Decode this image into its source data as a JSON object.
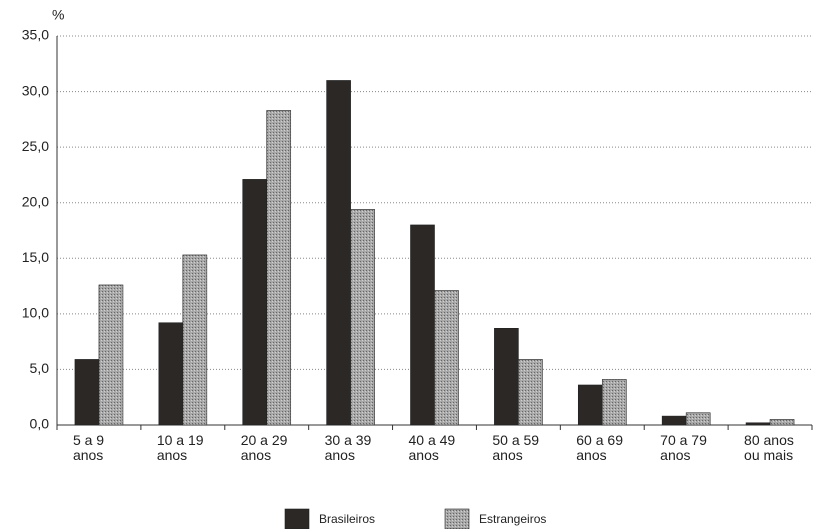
{
  "chart_data": {
    "type": "bar",
    "y_unit_label": "%",
    "categories": [
      "5 a 9\nanos",
      "10 a 19\nanos",
      "20 a 29\nanos",
      "30 a 39\nanos",
      "40 a 49\nanos",
      "50 a 59\nanos",
      "60 a 69\nanos",
      "70 a 79\nanos",
      "80 anos\nou mais"
    ],
    "series": [
      {
        "name": "Brasileiros",
        "color": "#2b2826",
        "values": [
          5.9,
          9.2,
          22.1,
          31.0,
          18.0,
          8.7,
          3.6,
          0.8,
          0.2
        ]
      },
      {
        "name": "Estrangeiros",
        "color": "#9a9a9a",
        "values": [
          12.6,
          15.3,
          28.3,
          19.4,
          12.1,
          5.9,
          4.1,
          1.1,
          0.5
        ]
      }
    ],
    "ylim": [
      0,
      35
    ],
    "yticks": [
      {
        "value": 0,
        "label": "0,0"
      },
      {
        "value": 5,
        "label": "5,0"
      },
      {
        "value": 10,
        "label": "10,0"
      },
      {
        "value": 15,
        "label": "15,0"
      },
      {
        "value": 20,
        "label": "20,0"
      },
      {
        "value": 25,
        "label": "25,0"
      },
      {
        "value": 30,
        "label": "30,0"
      },
      {
        "value": 35,
        "label": "35,0"
      }
    ],
    "grid": true,
    "legend": "bottom"
  }
}
